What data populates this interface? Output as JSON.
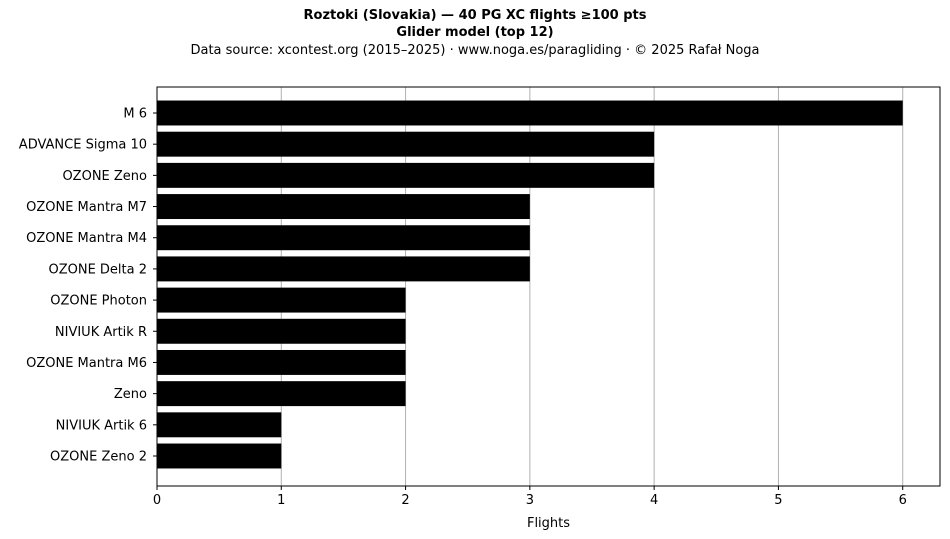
{
  "header": {
    "title": "Roztoki (Slovakia)  —  40 PG XC flights ≥100 pts",
    "subtitle": "Glider model (top 12)",
    "source": "Data source: xcontest.org (2015–2025)  ·  www.noga.es/paragliding  ·  © 2025 Rafał Noga"
  },
  "chart_data": {
    "type": "bar",
    "orientation": "horizontal",
    "title": "Roztoki (Slovakia)  —  40 PG XC flights ≥100 pts",
    "subtitle": "Glider model (top 12)",
    "xlabel": "Flights",
    "ylabel": "",
    "categories": [
      "M 6",
      "ADVANCE Sigma 10",
      "OZONE Zeno",
      "OZONE Mantra M7",
      "OZONE Mantra M4",
      "OZONE Delta 2",
      "OZONE Photon",
      "NIVIUK Artik R",
      "OZONE Mantra M6",
      "Zeno",
      "NIVIUK Artik 6",
      "OZONE Zeno 2"
    ],
    "values": [
      6,
      4,
      4,
      3,
      3,
      3,
      2,
      2,
      2,
      2,
      1,
      1
    ],
    "xlim": [
      0,
      6.3
    ],
    "xticks": [
      "0",
      "1",
      "2",
      "3",
      "4",
      "5",
      "6"
    ],
    "grid": "vertical",
    "bar_color": "#000000",
    "grid_color": "#b0b0b0"
  }
}
